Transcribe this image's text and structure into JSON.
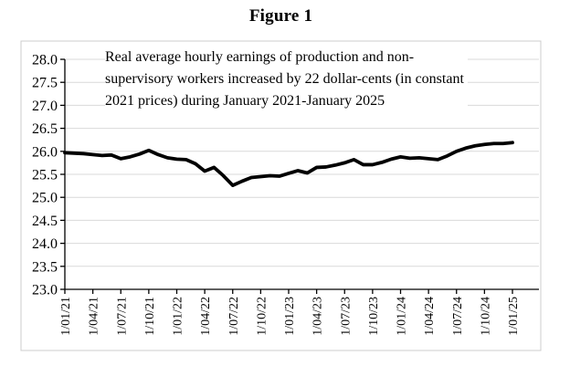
{
  "figure": {
    "title": "Figure 1"
  },
  "annotation": {
    "lines": [
      "Real average hourly earnings of production and non-",
      "supervisory workers increased by 22 dollar-cents (in constant",
      "2021 prices) during January 2021-January 2025"
    ]
  },
  "chart_data": {
    "type": "line",
    "title": "Figure 1",
    "annotation_text": "Real average hourly earnings of production and non-supervisory workers increased by 22 dollar-cents (in constant 2021 prices) during January 2021-January 2025",
    "xlabel": "",
    "ylabel": "",
    "ylim": [
      23.0,
      28.0
    ],
    "y_tick_step": 0.5,
    "grid": "horizontal",
    "legend": "none",
    "line_color": "#000000",
    "gridline_color": "#d9d9d9",
    "box_border_color": "#cccccc",
    "y_tick_labels": [
      "28.0",
      "27.5",
      "27.0",
      "26.5",
      "26.0",
      "25.5",
      "25.0",
      "24.5",
      "24.0",
      "23.5",
      "23.0"
    ],
    "x_tick_labels": [
      "1/01/21",
      "1/04/21",
      "1/07/21",
      "1/10/21",
      "1/01/22",
      "1/04/22",
      "1/07/22",
      "1/10/22",
      "1/01/23",
      "1/04/23",
      "1/07/23",
      "1/10/23",
      "1/01/24",
      "1/04/24",
      "1/07/24",
      "1/10/24",
      "1/01/25"
    ],
    "x": [
      "2021-01",
      "2021-02",
      "2021-03",
      "2021-04",
      "2021-05",
      "2021-06",
      "2021-07",
      "2021-08",
      "2021-09",
      "2021-10",
      "2021-11",
      "2021-12",
      "2022-01",
      "2022-02",
      "2022-03",
      "2022-04",
      "2022-05",
      "2022-06",
      "2022-07",
      "2022-08",
      "2022-09",
      "2022-10",
      "2022-11",
      "2022-12",
      "2023-01",
      "2023-02",
      "2023-03",
      "2023-04",
      "2023-05",
      "2023-06",
      "2023-07",
      "2023-08",
      "2023-09",
      "2023-10",
      "2023-11",
      "2023-12",
      "2024-01",
      "2024-02",
      "2024-03",
      "2024-04",
      "2024-05",
      "2024-06",
      "2024-07",
      "2024-08",
      "2024-09",
      "2024-10",
      "2024-11",
      "2024-12",
      "2025-01"
    ],
    "series": [
      {
        "name": "Real average hourly earnings (constant 2021 prices)",
        "values": [
          25.97,
          25.96,
          25.95,
          25.93,
          25.91,
          25.92,
          25.84,
          25.88,
          25.94,
          26.02,
          25.93,
          25.86,
          25.83,
          25.82,
          25.73,
          25.57,
          25.65,
          25.47,
          25.26,
          25.35,
          25.43,
          25.45,
          25.47,
          25.46,
          25.52,
          25.58,
          25.53,
          25.65,
          25.66,
          25.7,
          25.75,
          25.82,
          25.71,
          25.71,
          25.76,
          25.83,
          25.88,
          25.85,
          25.86,
          25.84,
          25.82,
          25.9,
          26.0,
          26.07,
          26.12,
          26.15,
          26.17,
          26.17,
          26.19
        ]
      }
    ]
  }
}
